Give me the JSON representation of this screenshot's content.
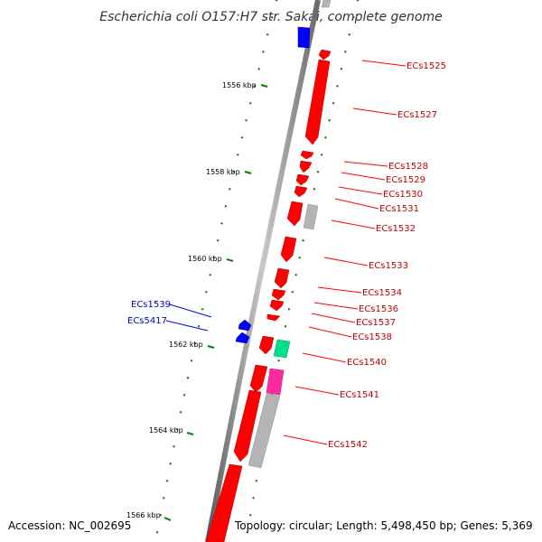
{
  "title": "Escherichia coli O157:H7 str. Sakai, complete genome",
  "footer": {
    "accession": "Accession: NC_002695",
    "summary": "Topology: circular; Length: 5,498,450 bp; Genes: 5,369"
  },
  "colors": {
    "forward_gene": "#0000ff",
    "reverse_gene": "#ff0000",
    "tick": "#008000",
    "backbone": "#808080",
    "grey_feature": "#b4b4b4",
    "teal_feature": "#00e08c",
    "pink_feature": "#ff2aa0"
  },
  "scale_labels": [
    "1556 kbp",
    "1558 kbp",
    "1560 kbp",
    "1562 kbp",
    "1564 kbp",
    "1566 kbp"
  ],
  "reverse_genes": [
    "ECs1525",
    "ECs1527",
    "ECs1528",
    "ECs1529",
    "ECs1530",
    "ECs1531",
    "ECs1532",
    "ECs1533",
    "ECs1534",
    "ECs1536",
    "ECs1537",
    "ECs1538",
    "ECs1540",
    "ECs1541",
    "ECs1542"
  ],
  "forward_genes": [
    "ECs1539",
    "ECs5417"
  ]
}
